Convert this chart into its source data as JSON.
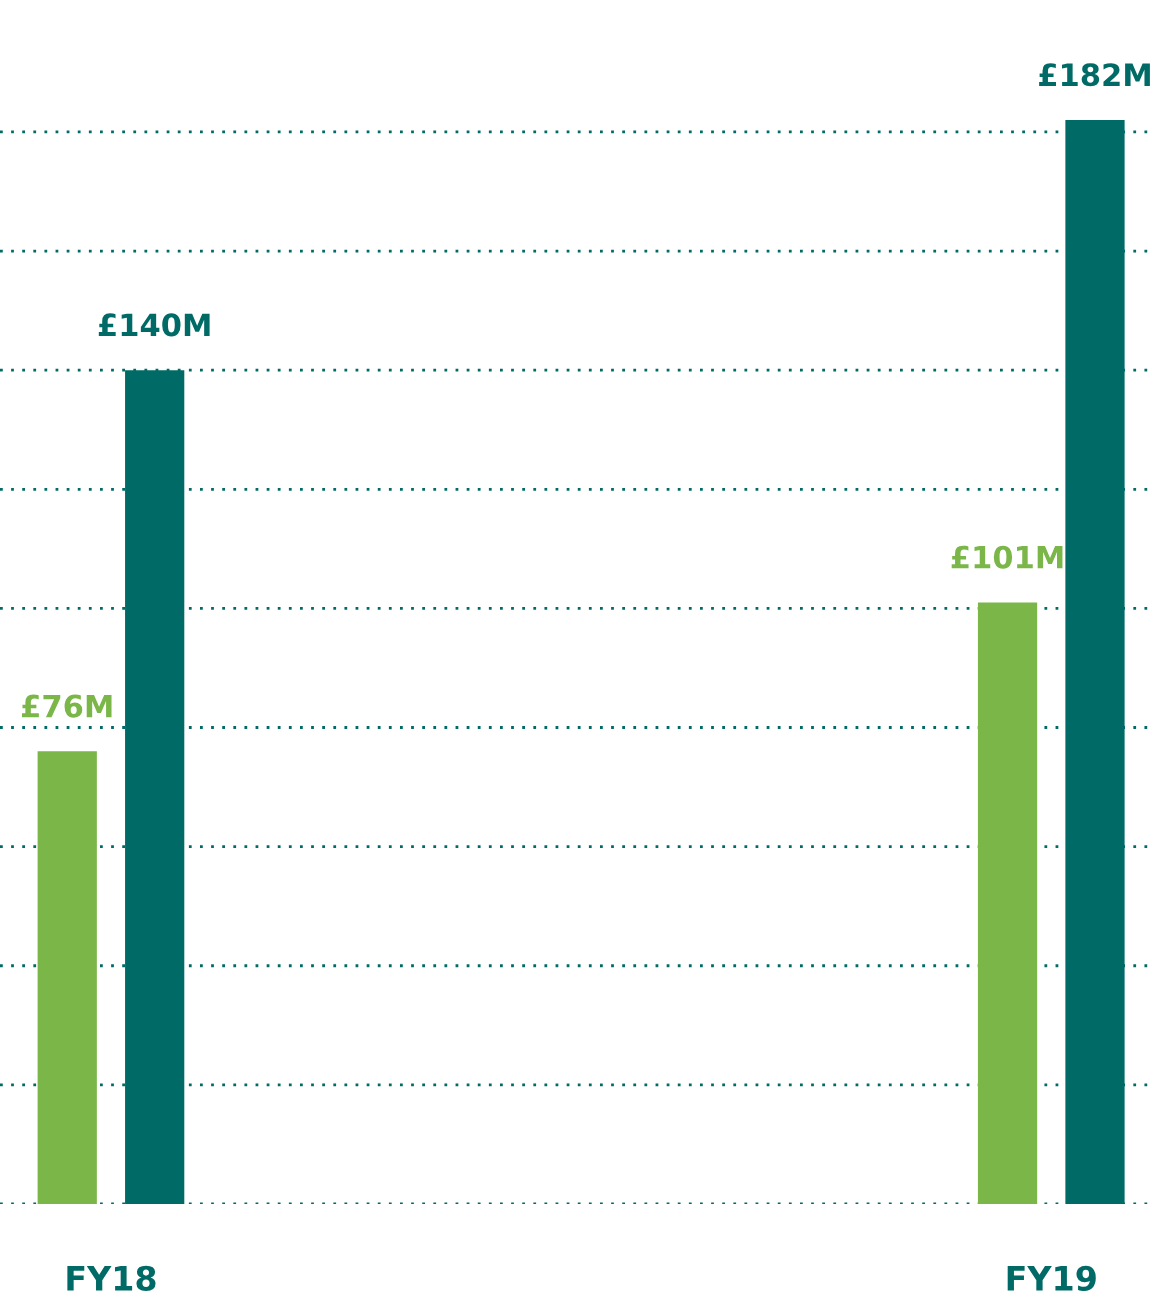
{
  "chart_data": {
    "type": "bar",
    "categories": [
      "FY18",
      "FY19"
    ],
    "series": [
      {
        "color": "#7ab648",
        "values": [
          76,
          101
        ],
        "value_labels": [
          "£76M",
          "£101M"
        ]
      },
      {
        "color": "#006b66",
        "values": [
          140,
          182
        ],
        "value_labels": [
          "£140M",
          "£182M"
        ]
      }
    ],
    "ylim": [
      0,
      182
    ],
    "yticks": [
      {
        "value": 0,
        "label": null
      },
      {
        "value": 20,
        "label": null
      },
      {
        "value": 40,
        "label": null
      },
      {
        "value": 60,
        "label": null
      },
      {
        "value": 80,
        "label": null
      },
      {
        "value": 100,
        "label": null
      },
      {
        "value": 120,
        "label": null
      },
      {
        "value": 140,
        "label": null
      },
      {
        "value": 160,
        "label": null
      },
      {
        "value": 180,
        "label": null
      }
    ],
    "grid": "y",
    "tick_labels": "x",
    "legend": false
  }
}
